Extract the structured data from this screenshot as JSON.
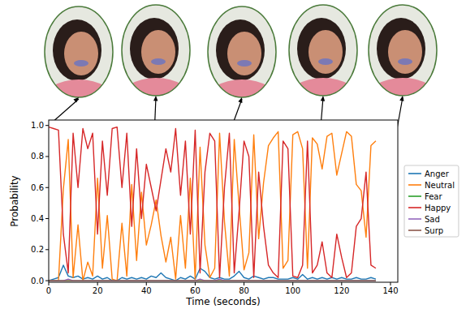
{
  "chart_data": {
    "type": "line",
    "x_label": "Time (seconds)",
    "y_label": "Probability",
    "x": [
      0,
      2,
      4,
      6,
      8,
      10,
      12,
      14,
      16,
      18,
      20,
      22,
      24,
      26,
      28,
      30,
      32,
      34,
      36,
      38,
      40,
      42,
      44,
      46,
      48,
      50,
      52,
      54,
      56,
      58,
      60,
      62,
      64,
      66,
      68,
      70,
      72,
      74,
      76,
      78,
      80,
      82,
      84,
      86,
      88,
      90,
      92,
      94,
      96,
      98,
      100,
      102,
      104,
      106,
      108,
      110,
      112,
      114,
      116,
      118,
      120,
      122,
      124,
      126,
      128,
      130,
      132,
      134
    ],
    "xlim": [
      0,
      143
    ],
    "xticks": [
      0,
      20,
      40,
      60,
      80,
      100,
      120,
      140
    ],
    "ylim": [
      -0.01,
      1.035
    ],
    "yticks": [
      {
        "value": 0,
        "label": "0.0"
      },
      0.2,
      0.4,
      0.6,
      0.8,
      {
        "value": 1,
        "label": "1.0"
      }
    ],
    "grid": false,
    "legend": "right",
    "series": [
      {
        "name": "Anger",
        "color": "#1f77b4",
        "values": [
          0.0,
          0.01,
          0.02,
          0.1,
          0.03,
          0.02,
          0.03,
          0.01,
          0.02,
          0.01,
          0.03,
          0.01,
          0.02,
          0.0,
          0.0,
          0.02,
          0.01,
          0.02,
          0.01,
          0.02,
          0.01,
          0.03,
          0.02,
          0.05,
          0.02,
          0.01,
          0.0,
          0.02,
          0.01,
          0.03,
          0.01,
          0.08,
          0.06,
          0.02,
          0.01,
          0.02,
          0.01,
          0.01,
          0.03,
          0.06,
          0.02,
          0.01,
          0.03,
          0.02,
          0.01,
          0.02,
          0.02,
          0.01,
          0.01,
          0.01,
          0.02,
          0.01,
          0.04,
          0.01,
          0.02,
          0.01,
          0.02,
          0.01,
          0.02,
          0.01,
          0.02,
          0.01,
          0.01,
          0.02,
          0.01,
          0.01,
          0.02,
          0.01
        ]
      },
      {
        "name": "Neutral",
        "color": "#ff7f0e",
        "values": [
          0.0,
          0.0,
          0.0,
          0.59,
          0.91,
          0.02,
          0.36,
          0.0,
          0.12,
          0.03,
          0.66,
          0.08,
          0.42,
          0.01,
          0.0,
          0.37,
          0.03,
          0.62,
          0.13,
          0.57,
          0.23,
          0.36,
          0.52,
          0.29,
          0.12,
          0.28,
          0.01,
          0.42,
          0.08,
          0.66,
          0.01,
          0.86,
          0.23,
          0.02,
          0.08,
          0.95,
          0.38,
          0.03,
          0.91,
          0.48,
          0.07,
          0.18,
          0.94,
          0.27,
          0.63,
          0.87,
          0.92,
          0.96,
          0.08,
          0.13,
          0.94,
          0.96,
          0.85,
          0.08,
          0.92,
          0.88,
          0.72,
          0.93,
          0.95,
          0.68,
          0.82,
          0.96,
          0.93,
          0.62,
          0.58,
          0.28,
          0.87,
          0.9
        ]
      },
      {
        "name": "Fear",
        "color": "#2ca02c",
        "values": [
          0,
          0,
          0,
          0,
          0,
          0,
          0,
          0,
          0,
          0,
          0,
          0,
          0,
          0,
          0,
          0,
          0,
          0,
          0,
          0,
          0,
          0,
          0,
          0,
          0,
          0,
          0,
          0,
          0,
          0,
          0,
          0,
          0,
          0,
          0,
          0,
          0,
          0,
          0,
          0,
          0,
          0,
          0,
          0,
          0,
          0,
          0,
          0,
          0,
          0,
          0,
          0,
          0,
          0,
          0,
          0,
          0,
          0,
          0,
          0,
          0,
          0,
          0,
          0,
          0,
          0,
          0,
          0
        ]
      },
      {
        "name": "Happy",
        "color": "#d62728",
        "values": [
          0.99,
          0.98,
          0.97,
          0.3,
          0.05,
          0.95,
          0.6,
          0.98,
          0.85,
          0.95,
          0.3,
          0.9,
          0.55,
          0.98,
          0.99,
          0.6,
          0.95,
          0.35,
          0.85,
          0.4,
          0.75,
          0.6,
          0.45,
          0.65,
          0.85,
          0.7,
          0.98,
          0.55,
          0.9,
          0.3,
          0.97,
          0.05,
          0.7,
          0.95,
          0.9,
          0.02,
          0.6,
          0.95,
          0.05,
          0.45,
          0.9,
          0.8,
          0.02,
          0.7,
          0.35,
          0.1,
          0.05,
          0.02,
          0.9,
          0.85,
          0.03,
          0.02,
          0.1,
          0.9,
          0.05,
          0.1,
          0.25,
          0.05,
          0.02,
          0.3,
          0.15,
          0.02,
          0.05,
          0.35,
          0.4,
          0.7,
          0.1,
          0.08
        ]
      },
      {
        "name": "Sad",
        "color": "#9467bd",
        "values": [
          0,
          0,
          0,
          0,
          0.01,
          0,
          0,
          0,
          0,
          0,
          0,
          0,
          0,
          0,
          0,
          0,
          0,
          0,
          0,
          0,
          0,
          0,
          0,
          0,
          0,
          0,
          0,
          0,
          0,
          0,
          0,
          0.01,
          0,
          0,
          0,
          0.01,
          0,
          0,
          0,
          0,
          0,
          0,
          0,
          0,
          0,
          0,
          0,
          0,
          0,
          0,
          0,
          0,
          0,
          0,
          0,
          0,
          0,
          0,
          0,
          0,
          0,
          0,
          0,
          0,
          0,
          0,
          0,
          0
        ]
      },
      {
        "name": "Surp",
        "color": "#8c564b",
        "values": [
          0,
          0,
          0,
          0,
          0,
          0,
          0,
          0,
          0,
          0,
          0,
          0,
          0,
          0,
          0,
          0,
          0,
          0,
          0,
          0,
          0,
          0,
          0,
          0,
          0,
          0,
          0,
          0,
          0,
          0,
          0,
          0,
          0,
          0,
          0,
          0,
          0,
          0,
          0,
          0,
          0,
          0,
          0,
          0,
          0,
          0,
          0,
          0,
          0,
          0,
          0,
          0,
          0,
          0,
          0,
          0,
          0,
          0,
          0,
          0,
          0,
          0,
          0,
          0,
          0,
          0,
          0,
          0
        ]
      }
    ]
  }
}
